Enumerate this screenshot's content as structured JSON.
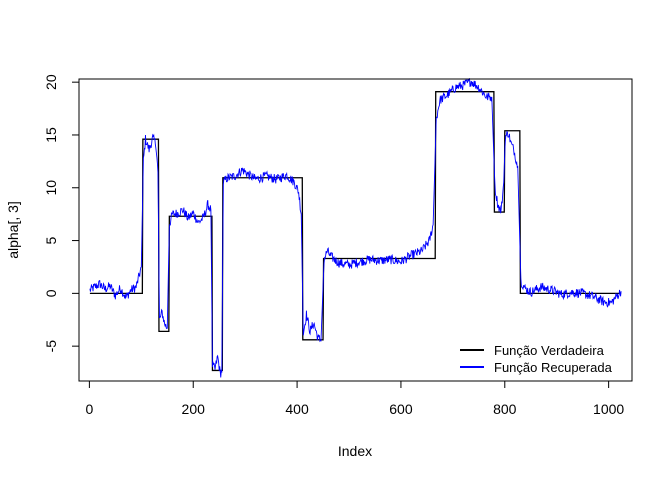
{
  "chart_data": {
    "type": "line",
    "title": "",
    "xlabel": "Index",
    "ylabel": "alpha[, 3]",
    "xlim": [
      -20,
      1045
    ],
    "ylim": [
      -8.3,
      20.3
    ],
    "x_ticks": [
      0,
      200,
      400,
      600,
      800,
      1000
    ],
    "y_ticks": [
      -5,
      0,
      5,
      10,
      15,
      20
    ],
    "grid": false,
    "legend_position": "bottom-right",
    "series": [
      {
        "name": "Função Verdadeira",
        "color": "#000000",
        "kind": "step",
        "segments": [
          [
            1,
            102,
            0
          ],
          [
            103,
            133,
            14.6
          ],
          [
            134,
            153,
            -3.6
          ],
          [
            154,
            236,
            7.3
          ],
          [
            237,
            256,
            -7.3
          ],
          [
            257,
            410,
            10.95
          ],
          [
            411,
            450,
            -4.4
          ],
          [
            451,
            666,
            3.3
          ],
          [
            667,
            779,
            19.1
          ],
          [
            780,
            799,
            7.7
          ],
          [
            800,
            829,
            15.4
          ],
          [
            830,
            1024,
            0
          ]
        ]
      },
      {
        "name": "Função Recuperada",
        "color": "#0000ff",
        "kind": "noisy",
        "control_points": [
          [
            1,
            0.3
          ],
          [
            10,
            0.6
          ],
          [
            20,
            0.9
          ],
          [
            30,
            0.4
          ],
          [
            40,
            0.7
          ],
          [
            50,
            -0.2
          ],
          [
            60,
            0.5
          ],
          [
            70,
            -0.4
          ],
          [
            80,
            0.3
          ],
          [
            90,
            0.6
          ],
          [
            95,
            1.5
          ],
          [
            100,
            2.5
          ],
          [
            104,
            12.5
          ],
          [
            108,
            14.6
          ],
          [
            115,
            13.6
          ],
          [
            122,
            14.7
          ],
          [
            128,
            14.2
          ],
          [
            132,
            11.5
          ],
          [
            135,
            -2.5
          ],
          [
            140,
            -1.8
          ],
          [
            145,
            -2.9
          ],
          [
            150,
            -3.3
          ],
          [
            154,
            6.5
          ],
          [
            160,
            7.5
          ],
          [
            170,
            7.6
          ],
          [
            180,
            7.9
          ],
          [
            190,
            7.1
          ],
          [
            200,
            7.6
          ],
          [
            210,
            6.7
          ],
          [
            220,
            7.2
          ],
          [
            228,
            8.4
          ],
          [
            234,
            7.9
          ],
          [
            237,
            -6.8
          ],
          [
            242,
            -7.2
          ],
          [
            247,
            -6.0
          ],
          [
            252,
            -7.6
          ],
          [
            255,
            -7.4
          ],
          [
            258,
            10.5
          ],
          [
            265,
            10.9
          ],
          [
            280,
            11.1
          ],
          [
            295,
            11.7
          ],
          [
            305,
            11.3
          ],
          [
            320,
            10.8
          ],
          [
            340,
            11.1
          ],
          [
            360,
            10.8
          ],
          [
            380,
            11.2
          ],
          [
            395,
            10.5
          ],
          [
            403,
            9.6
          ],
          [
            408,
            7.5
          ],
          [
            412,
            -3.8
          ],
          [
            418,
            -2.0
          ],
          [
            425,
            -3.6
          ],
          [
            432,
            -2.8
          ],
          [
            440,
            -4.2
          ],
          [
            446,
            -4.5
          ],
          [
            452,
            3.2
          ],
          [
            458,
            4.0
          ],
          [
            465,
            3.5
          ],
          [
            480,
            2.9
          ],
          [
            500,
            2.7
          ],
          [
            520,
            3.0
          ],
          [
            540,
            3.2
          ],
          [
            560,
            3.1
          ],
          [
            580,
            3.2
          ],
          [
            600,
            3.0
          ],
          [
            620,
            3.6
          ],
          [
            640,
            4.0
          ],
          [
            655,
            5.0
          ],
          [
            662,
            6.5
          ],
          [
            668,
            16.5
          ],
          [
            675,
            18.3
          ],
          [
            690,
            18.8
          ],
          [
            705,
            19.5
          ],
          [
            720,
            19.7
          ],
          [
            735,
            20.1
          ],
          [
            750,
            19.5
          ],
          [
            765,
            18.6
          ],
          [
            775,
            18.6
          ],
          [
            781,
            10.0
          ],
          [
            787,
            8.3
          ],
          [
            793,
            7.8
          ],
          [
            798,
            10.5
          ],
          [
            801,
            14.8
          ],
          [
            807,
            15.2
          ],
          [
            812,
            14.2
          ],
          [
            818,
            13.5
          ],
          [
            825,
            12.0
          ],
          [
            831,
            1.2
          ],
          [
            838,
            0.5
          ],
          [
            850,
            0.1
          ],
          [
            870,
            0.6
          ],
          [
            890,
            0.3
          ],
          [
            910,
            -0.1
          ],
          [
            930,
            0.1
          ],
          [
            950,
            0.0
          ],
          [
            970,
            -0.3
          ],
          [
            990,
            -0.8
          ],
          [
            1005,
            -0.9
          ],
          [
            1015,
            -0.3
          ],
          [
            1024,
            0.2
          ]
        ]
      }
    ]
  }
}
